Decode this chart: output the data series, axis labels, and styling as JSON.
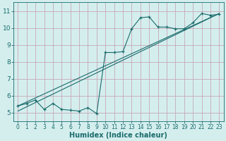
{
  "xlabel": "Humidex (Indice chaleur)",
  "bg_color": "#d4eeee",
  "grid_color": "#c8a8b8",
  "line_color": "#1a6b6b",
  "xlim": [
    -0.5,
    23.5
  ],
  "ylim": [
    4.5,
    11.5
  ],
  "yticks": [
    5,
    6,
    7,
    8,
    9,
    10,
    11
  ],
  "xticks": [
    0,
    1,
    2,
    3,
    4,
    5,
    6,
    7,
    8,
    9,
    10,
    11,
    12,
    13,
    14,
    15,
    16,
    17,
    18,
    19,
    20,
    21,
    22,
    23
  ],
  "data_line": {
    "x": [
      0,
      1,
      2,
      3,
      4,
      5,
      6,
      7,
      8,
      9,
      10,
      11,
      12,
      13,
      14,
      15,
      16,
      17,
      18,
      19,
      20,
      21,
      22,
      23
    ],
    "y": [
      5.4,
      5.55,
      5.75,
      5.2,
      5.55,
      5.2,
      5.15,
      5.1,
      5.3,
      4.95,
      8.55,
      8.55,
      8.6,
      9.95,
      10.6,
      10.65,
      10.05,
      10.05,
      9.95,
      9.95,
      10.3,
      10.85,
      10.75,
      10.8
    ]
  },
  "reg_line1": {
    "x": [
      0,
      23
    ],
    "y": [
      5.4,
      10.85
    ]
  },
  "reg_line2": {
    "x": [
      0,
      23
    ],
    "y": [
      5.1,
      10.85
    ]
  }
}
